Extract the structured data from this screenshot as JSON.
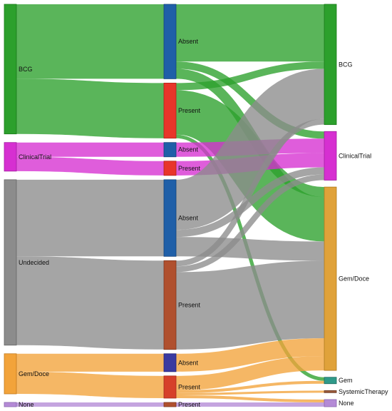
{
  "chart_data": {
    "type": "sankey",
    "columns": [
      {
        "nodes": [
          {
            "id": "bcg_l",
            "label": "BCG",
            "color": "#2ca02c",
            "stroke": "#1a7a1a"
          },
          {
            "id": "ct_l",
            "label": "ClinicalTrial",
            "color": "#d62fd1",
            "stroke": "#a31ea0"
          },
          {
            "id": "und_l",
            "label": "Undecided",
            "color": "#8c8c8c",
            "stroke": "#666666"
          },
          {
            "id": "gd_l",
            "label": "Gem/Doce",
            "color": "#f2a33a",
            "stroke": "#c27a1f"
          },
          {
            "id": "none_l",
            "label": "None",
            "color": "#b48ad6",
            "stroke": "#8a66ad"
          }
        ]
      },
      {
        "nodes": [
          {
            "id": "bcg_a",
            "label": "Absent",
            "color": "#1f5fa8",
            "stroke": "#15437a"
          },
          {
            "id": "bcg_p",
            "label": "Present",
            "color": "#e8352a",
            "stroke": "#b0241c"
          },
          {
            "id": "ct_a",
            "label": "Absent",
            "color": "#1f5fa8",
            "stroke": "#15437a"
          },
          {
            "id": "ct_p",
            "label": "Present",
            "color": "#e8352a",
            "stroke": "#b0241c"
          },
          {
            "id": "und_a",
            "label": "Absent",
            "color": "#1f5fa8",
            "stroke": "#15437a"
          },
          {
            "id": "und_p",
            "label": "Present",
            "color": "#b0502e",
            "stroke": "#7f3820"
          },
          {
            "id": "gd_a",
            "label": "Absent",
            "color": "#3a3aa0",
            "stroke": "#25257a"
          },
          {
            "id": "gd_p",
            "label": "Present",
            "color": "#d6402a",
            "stroke": "#a32c1c"
          },
          {
            "id": "none_p",
            "label": "Present",
            "color": "#b0502e",
            "stroke": "#7f3820"
          }
        ]
      },
      {
        "nodes": [
          {
            "id": "bcg_r",
            "label": "BCG",
            "color": "#2ca02c",
            "stroke": "#1a7a1a"
          },
          {
            "id": "ct_r",
            "label": "ClinicalTrial",
            "color": "#d62fd1",
            "stroke": "#a31ea0"
          },
          {
            "id": "gd_r",
            "label": "Gem/Doce",
            "color": "#e0a23a",
            "stroke": "#b07a1f"
          },
          {
            "id": "gem_r",
            "label": "Gem",
            "color": "#2f9a8a",
            "stroke": "#1f6b60"
          },
          {
            "id": "sys_r",
            "label": "SystemicTherapy",
            "color": "#9a5a3a",
            "stroke": "#6b3e28"
          },
          {
            "id": "nonr_r",
            "label": "None",
            "color": "#b48ad6",
            "stroke": "#8a66ad"
          }
        ]
      }
    ],
    "links": [
      {
        "source": "bcg_l",
        "target": "bcg_a",
        "value": 104
      },
      {
        "source": "bcg_l",
        "target": "bcg_p",
        "value": 77
      },
      {
        "source": "ct_l",
        "target": "ct_a",
        "value": 20
      },
      {
        "source": "ct_l",
        "target": "ct_p",
        "value": 20
      },
      {
        "source": "und_l",
        "target": "und_a",
        "value": 107
      },
      {
        "source": "und_l",
        "target": "und_p",
        "value": 124
      },
      {
        "source": "gd_l",
        "target": "gd_a",
        "value": 25
      },
      {
        "source": "gd_l",
        "target": "gd_p",
        "value": 31
      },
      {
        "source": "none_l",
        "target": "none_p",
        "value": 6
      },
      {
        "source": "bcg_a",
        "target": "bcg_r",
        "value": 80
      },
      {
        "source": "bcg_a",
        "target": "ct_r",
        "value": 10
      },
      {
        "source": "bcg_a",
        "target": "gd_r",
        "value": 14
      },
      {
        "source": "bcg_p",
        "target": "bcg_r",
        "value": 10
      },
      {
        "source": "bcg_p",
        "target": "gd_r",
        "value": 62
      },
      {
        "source": "bcg_p",
        "target": "gem_r",
        "value": 5
      },
      {
        "source": "ct_a",
        "target": "ct_r",
        "value": 20
      },
      {
        "source": "ct_p",
        "target": "ct_r",
        "value": 20
      },
      {
        "source": "und_a",
        "target": "bcg_r",
        "value": 70
      },
      {
        "source": "und_a",
        "target": "ct_r",
        "value": 10
      },
      {
        "source": "und_a",
        "target": "gd_r",
        "value": 27
      },
      {
        "source": "und_p",
        "target": "bcg_r",
        "value": 8
      },
      {
        "source": "und_p",
        "target": "ct_r",
        "value": 8
      },
      {
        "source": "und_p",
        "target": "gd_r",
        "value": 108
      },
      {
        "source": "gd_a",
        "target": "gd_r",
        "value": 25
      },
      {
        "source": "gd_p",
        "target": "gd_r",
        "value": 20
      },
      {
        "source": "gd_p",
        "target": "gem_r",
        "value": 4
      },
      {
        "source": "gd_p",
        "target": "sys_r",
        "value": 3
      },
      {
        "source": "gd_p",
        "target": "nonr_r",
        "value": 4
      },
      {
        "source": "none_p",
        "target": "nonr_r",
        "value": 6
      }
    ]
  }
}
